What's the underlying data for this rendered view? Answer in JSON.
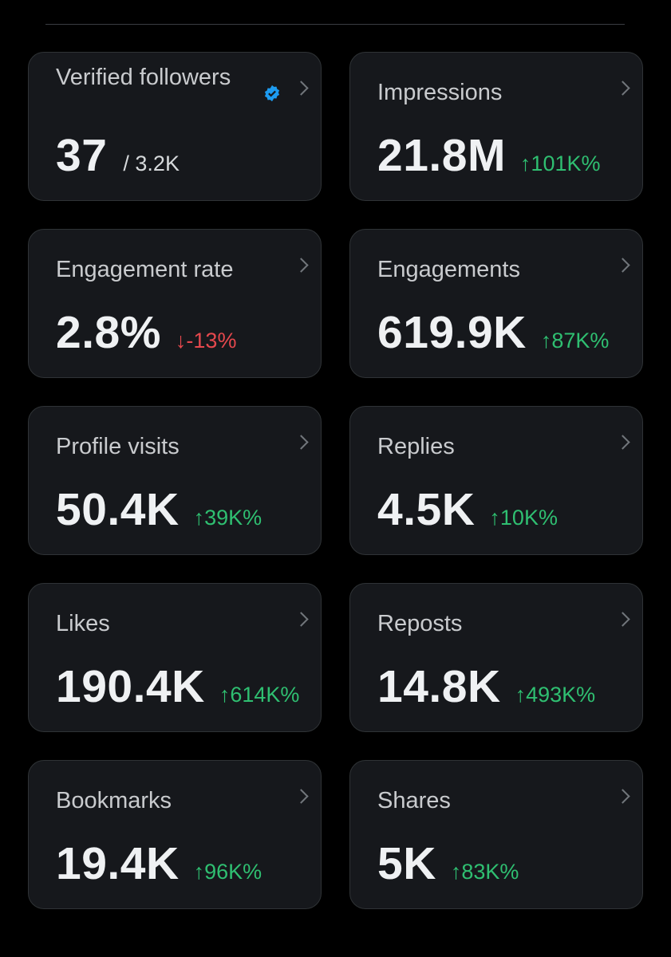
{
  "cards": [
    {
      "title": "Verified followers",
      "value": "37",
      "sub": "/ 3.2K",
      "verified_icon": "verified-badge-icon"
    },
    {
      "title": "Impressions",
      "value": "21.8M",
      "delta": "↑101K%",
      "trend": "up"
    },
    {
      "title": "Engagement rate",
      "value": "2.8%",
      "delta": "↓-13%",
      "trend": "down"
    },
    {
      "title": "Engagements",
      "value": "619.9K",
      "delta": "↑87K%",
      "trend": "up"
    },
    {
      "title": "Profile visits",
      "value": "50.4K",
      "delta": "↑39K%",
      "trend": "up"
    },
    {
      "title": "Replies",
      "value": "4.5K",
      "delta": "↑10K%",
      "trend": "up"
    },
    {
      "title": "Likes",
      "value": "190.4K",
      "delta": "↑614K%",
      "trend": "up"
    },
    {
      "title": "Reposts",
      "value": "14.8K",
      "delta": "↑493K%",
      "trend": "up"
    },
    {
      "title": "Bookmarks",
      "value": "19.4K",
      "delta": "↑96K%",
      "trend": "up"
    },
    {
      "title": "Shares",
      "value": "5K",
      "delta": "↑83K%",
      "trend": "up"
    }
  ],
  "colors": {
    "up": "#2fbf71",
    "down": "#e5484d",
    "badge": "#1d9bf0"
  }
}
